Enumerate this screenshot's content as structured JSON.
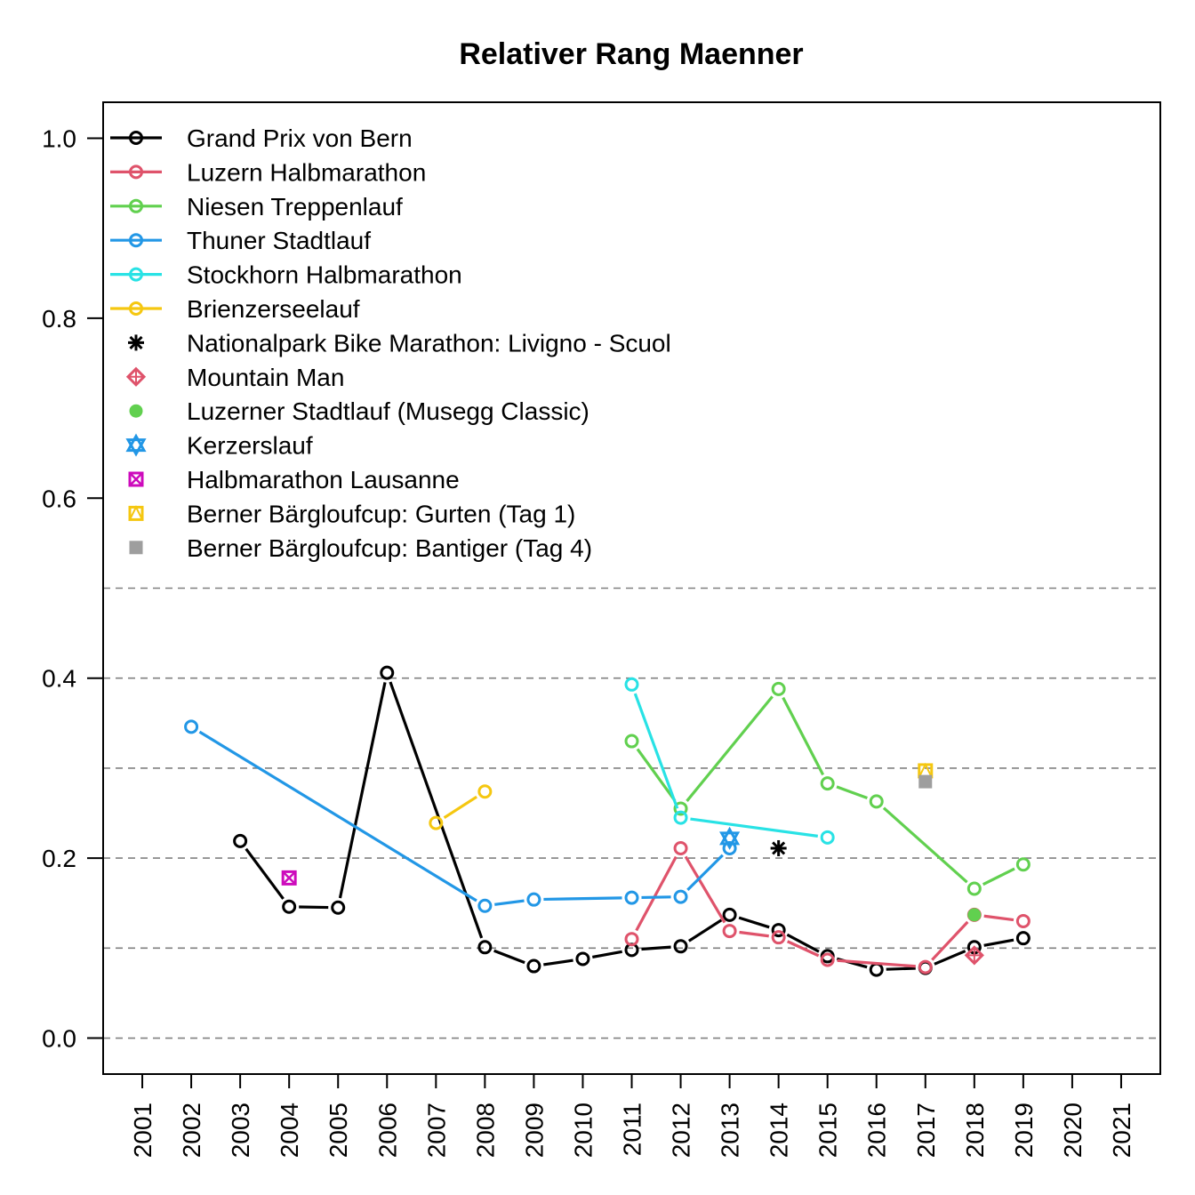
{
  "chart_data": {
    "type": "line",
    "title": "Relativer Rang Maenner",
    "xlabel": "",
    "ylabel": "",
    "xlim": [
      2000.2,
      2021.8
    ],
    "ylim": [
      -0.04,
      1.04
    ],
    "x_ticks": [
      "2001",
      "2002",
      "2003",
      "2004",
      "2005",
      "2006",
      "2007",
      "2008",
      "2009",
      "2010",
      "2011",
      "2012",
      "2013",
      "2014",
      "2015",
      "2016",
      "2017",
      "2018",
      "2019",
      "2020",
      "2021"
    ],
    "y_ticks": [
      "0.0",
      "0.2",
      "0.4",
      "0.6",
      "0.8",
      "1.0"
    ],
    "gridlines_y": [
      0.0,
      0.1,
      0.2,
      0.3,
      0.4,
      0.5
    ],
    "legend_position": "top-left",
    "series": [
      {
        "name": "Grand Prix von Bern",
        "color": "#000000",
        "marker": "circle",
        "line": true,
        "points": [
          [
            2003,
            0.219
          ],
          [
            2004,
            0.146
          ],
          [
            2005,
            0.145
          ],
          [
            2006,
            0.406
          ],
          [
            2008,
            0.101
          ],
          [
            2009,
            0.08
          ],
          [
            2010,
            0.088
          ],
          [
            2011,
            0.098
          ],
          [
            2012,
            0.102
          ],
          [
            2013,
            0.137
          ],
          [
            2014,
            0.12
          ],
          [
            2015,
            0.091
          ],
          [
            2016,
            0.076
          ],
          [
            2017,
            0.078
          ],
          [
            2018,
            0.101
          ],
          [
            2019,
            0.111
          ]
        ]
      },
      {
        "name": "Luzern Halbmarathon",
        "color": "#DF536B",
        "marker": "circle",
        "line": true,
        "points": [
          [
            2011,
            0.11
          ],
          [
            2012,
            0.211
          ],
          [
            2013,
            0.119
          ],
          [
            2014,
            0.112
          ],
          [
            2015,
            0.087
          ],
          [
            2017,
            0.079
          ],
          [
            2018,
            0.137
          ],
          [
            2019,
            0.13
          ]
        ]
      },
      {
        "name": "Niesen Treppenlauf",
        "color": "#61D04F",
        "marker": "circle",
        "line": true,
        "points": [
          [
            2011,
            0.33
          ],
          [
            2012,
            0.255
          ],
          [
            2014,
            0.388
          ],
          [
            2015,
            0.283
          ],
          [
            2016,
            0.263
          ],
          [
            2018,
            0.166
          ],
          [
            2019,
            0.193
          ]
        ]
      },
      {
        "name": "Thuner Stadtlauf",
        "color": "#2297E6",
        "marker": "circle",
        "line": true,
        "points": [
          [
            2002,
            0.346
          ],
          [
            2008,
            0.147
          ],
          [
            2009,
            0.154
          ],
          [
            2011,
            0.156
          ],
          [
            2012,
            0.157
          ],
          [
            2013,
            0.211
          ]
        ]
      },
      {
        "name": "Stockhorn Halbmarathon",
        "color": "#28E2E5",
        "marker": "circle",
        "line": true,
        "points": [
          [
            2011,
            0.393
          ],
          [
            2012,
            0.245
          ],
          [
            2015,
            0.223
          ]
        ]
      },
      {
        "name": "Brienzerseelauf",
        "color": "#F5C710",
        "marker": "circle",
        "line": true,
        "points": [
          [
            2007,
            0.239
          ],
          [
            2008,
            0.274
          ]
        ]
      },
      {
        "name": "Nationalpark Bike Marathon: Livigno - Scuol",
        "color": "#000000",
        "marker": "asterisk",
        "line": false,
        "points": [
          [
            2014,
            0.211
          ]
        ]
      },
      {
        "name": "Mountain Man",
        "color": "#DF536B",
        "marker": "diamond-plus",
        "line": false,
        "points": [
          [
            2018,
            0.092
          ]
        ]
      },
      {
        "name": "Luzerner Stadtlauf (Musegg Classic)",
        "color": "#61D04F",
        "marker": "circle-filled",
        "line": false,
        "points": [
          [
            2018,
            0.137
          ]
        ]
      },
      {
        "name": "Kerzerslauf",
        "color": "#2297E6",
        "marker": "star-of-david",
        "line": false,
        "points": [
          [
            2013,
            0.222
          ]
        ]
      },
      {
        "name": "Halbmarathon Lausanne",
        "color": "#CD0BBC",
        "marker": "square-x",
        "line": false,
        "points": [
          [
            2004,
            0.178
          ]
        ]
      },
      {
        "name": "Berner Bärgloufcup: Gurten (Tag 1)",
        "color": "#F5C710",
        "marker": "square-triangle",
        "line": false,
        "points": [
          [
            2017,
            0.297
          ]
        ]
      },
      {
        "name": "Berner Bärgloufcup: Bantiger (Tag 4)",
        "color": "#9E9E9E",
        "marker": "square-filled",
        "line": false,
        "points": [
          [
            2017,
            0.285
          ]
        ]
      }
    ]
  }
}
